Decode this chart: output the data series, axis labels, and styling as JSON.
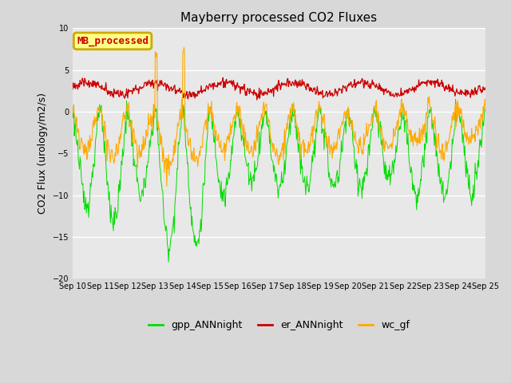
{
  "title": "Mayberry processed CO2 Fluxes",
  "ylabel": "CO2 Flux (urology/m2/s)",
  "ylim": [
    -20,
    10
  ],
  "yticks": [
    10,
    5,
    0,
    -5,
    -10,
    -15,
    -20
  ],
  "xlim": [
    0,
    15
  ],
  "xtick_labels": [
    "Sep 10",
    "Sep 11",
    "Sep 12",
    "Sep 13",
    "Sep 14",
    "Sep 15",
    "Sep 16",
    "Sep 17",
    "Sep 18",
    "Sep 19",
    "Sep 20",
    "Sep 21",
    "Sep 22",
    "Sep 23",
    "Sep 24",
    "Sep 25"
  ],
  "colors": {
    "gpp": "#00dd00",
    "er": "#cc0000",
    "wc": "#ffaa00"
  },
  "bg_color": "#d8d8d8",
  "plot_bg_color": "#e8e8e8",
  "legend_label": "MB_processed",
  "legend_text_color": "#cc0000",
  "legend_border_color": "#ccaa00",
  "legend_bg_color": "#ffff88",
  "n_points": 720,
  "title_fontsize": 11,
  "ylabel_fontsize": 9,
  "tick_fontsize": 7,
  "legend_fontsize": 9
}
